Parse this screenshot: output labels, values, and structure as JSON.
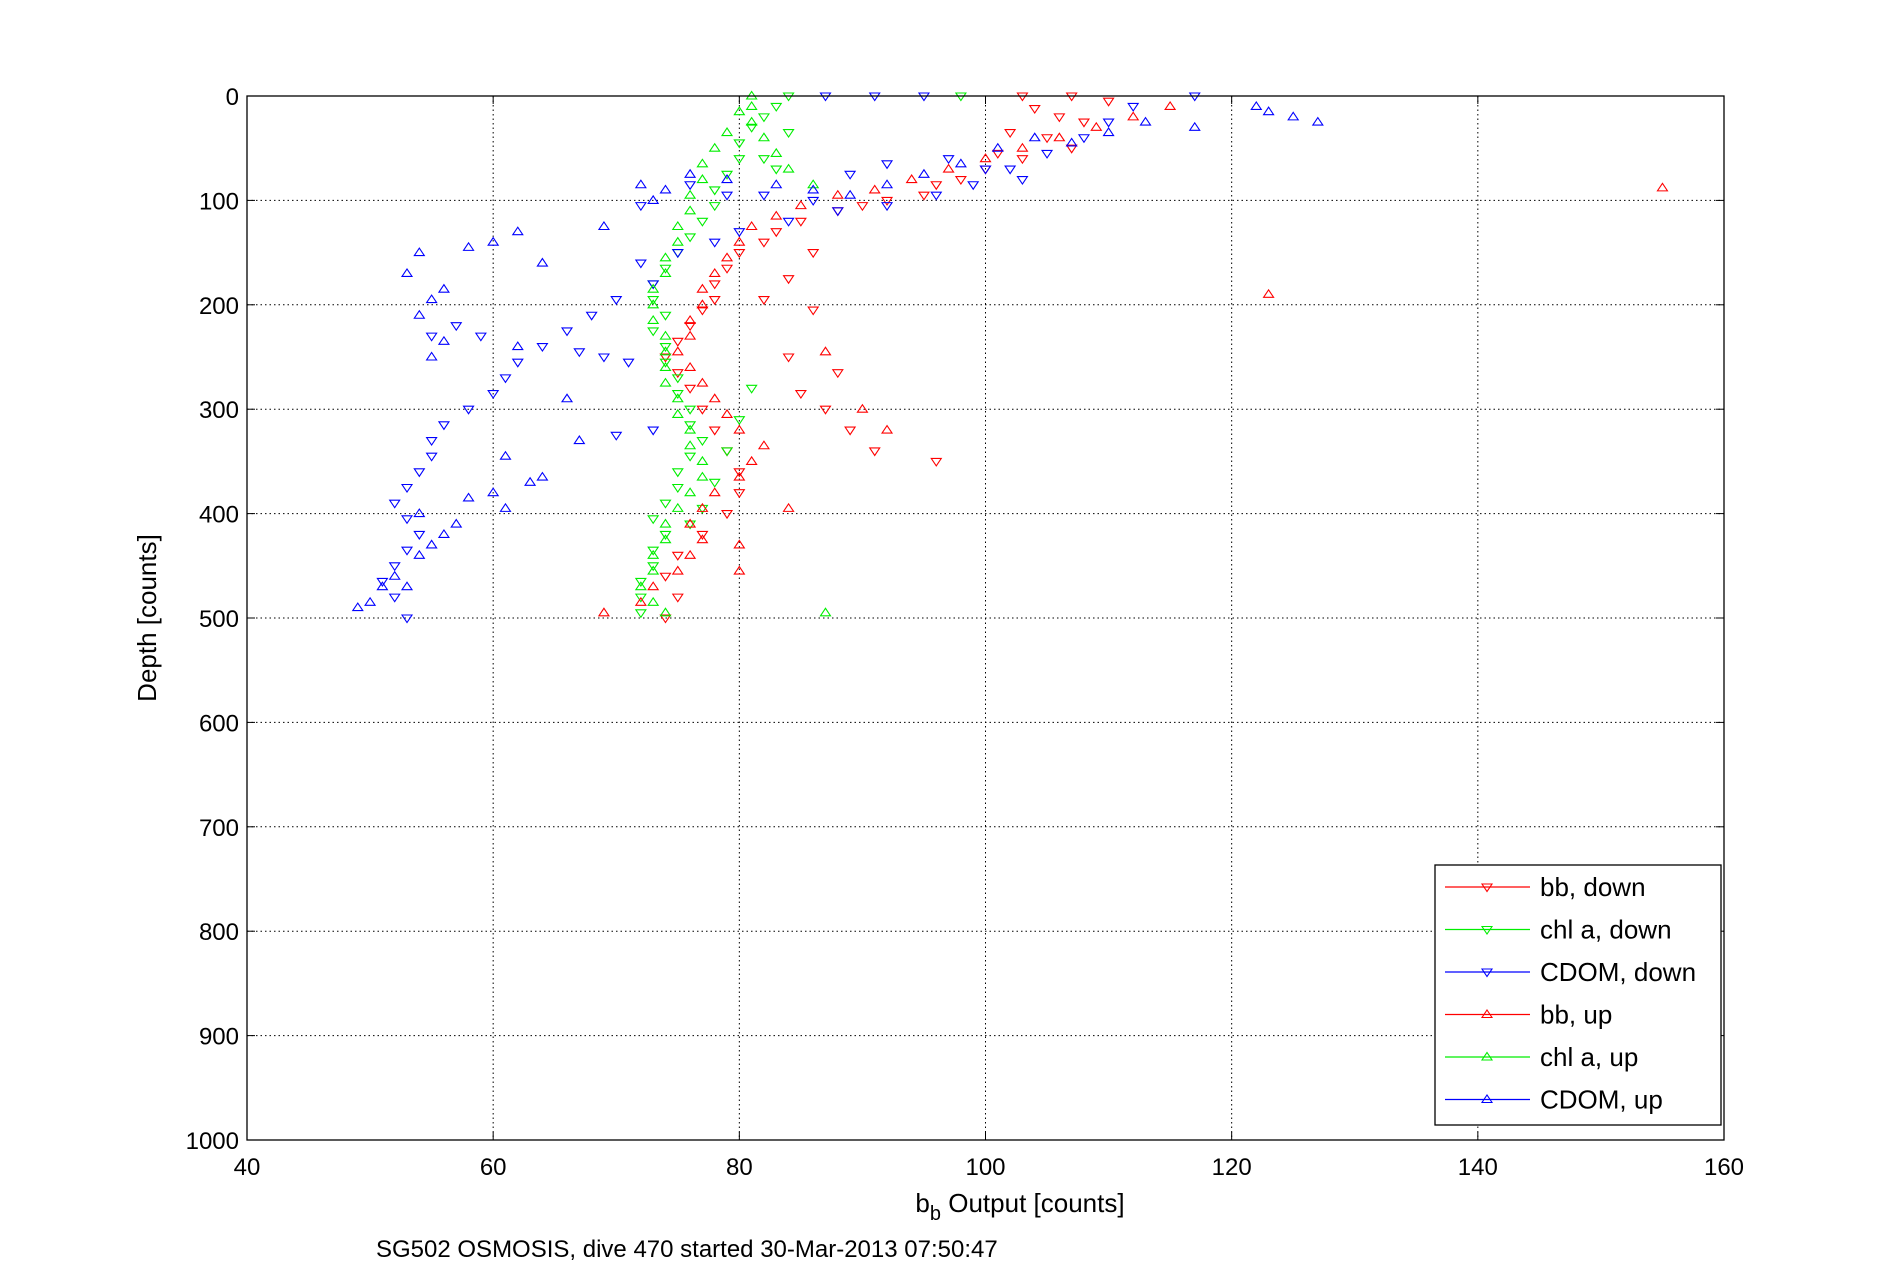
{
  "chart_data": {
    "type": "scatter",
    "xlabel_main": "b",
    "xlabel_sub": "b",
    "xlabel_rest": " Output [counts]",
    "ylabel": "Depth [counts]",
    "caption": "SG502 OSMOSIS, dive 470 started 30-Mar-2013 07:50:47",
    "xlim": [
      40,
      160
    ],
    "ylim": [
      0,
      1000
    ],
    "y_reversed": true,
    "grid": true,
    "xticks": [
      "40",
      "60",
      "80",
      "100",
      "120",
      "140",
      "160"
    ],
    "yticks": [
      "0",
      "100",
      "200",
      "300",
      "400",
      "500",
      "600",
      "700",
      "800",
      "900",
      "1000"
    ],
    "legend_position": "bottom-right",
    "series": [
      {
        "name": "bb, down",
        "color": "#ff0000",
        "marker": "triangle-down",
        "points": [
          [
            103,
            0
          ],
          [
            107,
            0
          ],
          [
            110,
            5
          ],
          [
            104,
            12
          ],
          [
            106,
            20
          ],
          [
            108,
            25
          ],
          [
            102,
            35
          ],
          [
            105,
            40
          ],
          [
            107,
            50
          ],
          [
            101,
            55
          ],
          [
            103,
            60
          ],
          [
            100,
            70
          ],
          [
            98,
            80
          ],
          [
            96,
            85
          ],
          [
            95,
            95
          ],
          [
            92,
            100
          ],
          [
            90,
            105
          ],
          [
            88,
            110
          ],
          [
            85,
            120
          ],
          [
            83,
            130
          ],
          [
            82,
            140
          ],
          [
            80,
            150
          ],
          [
            79,
            165
          ],
          [
            78,
            180
          ],
          [
            78,
            195
          ],
          [
            77,
            205
          ],
          [
            76,
            220
          ],
          [
            75,
            235
          ],
          [
            74,
            250
          ],
          [
            75,
            265
          ],
          [
            76,
            280
          ],
          [
            77,
            300
          ],
          [
            78,
            320
          ],
          [
            79,
            340
          ],
          [
            80,
            360
          ],
          [
            80,
            380
          ],
          [
            79,
            400
          ],
          [
            77,
            420
          ],
          [
            75,
            440
          ],
          [
            74,
            460
          ],
          [
            75,
            480
          ],
          [
            74,
            500
          ],
          [
            84,
            250
          ],
          [
            88,
            265
          ],
          [
            85,
            285
          ],
          [
            87,
            300
          ],
          [
            89,
            320
          ],
          [
            91,
            340
          ],
          [
            96,
            350
          ],
          [
            86,
            205
          ],
          [
            82,
            195
          ],
          [
            84,
            175
          ],
          [
            86,
            150
          ]
        ]
      },
      {
        "name": "chl a, down",
        "color": "#00ee00",
        "marker": "triangle-down",
        "points": [
          [
            98,
            0
          ],
          [
            84,
            0
          ],
          [
            83,
            10
          ],
          [
            82,
            20
          ],
          [
            81,
            30
          ],
          [
            80,
            45
          ],
          [
            80,
            60
          ],
          [
            79,
            75
          ],
          [
            78,
            90
          ],
          [
            78,
            105
          ],
          [
            77,
            120
          ],
          [
            76,
            135
          ],
          [
            75,
            150
          ],
          [
            74,
            165
          ],
          [
            73,
            180
          ],
          [
            73,
            195
          ],
          [
            74,
            210
          ],
          [
            73,
            225
          ],
          [
            74,
            240
          ],
          [
            74,
            255
          ],
          [
            75,
            270
          ],
          [
            75,
            285
          ],
          [
            76,
            300
          ],
          [
            76,
            315
          ],
          [
            77,
            330
          ],
          [
            76,
            345
          ],
          [
            75,
            360
          ],
          [
            75,
            375
          ],
          [
            74,
            390
          ],
          [
            73,
            405
          ],
          [
            74,
            420
          ],
          [
            73,
            435
          ],
          [
            73,
            450
          ],
          [
            72,
            465
          ],
          [
            72,
            480
          ],
          [
            72,
            495
          ],
          [
            76,
            410
          ],
          [
            77,
            395
          ],
          [
            78,
            370
          ],
          [
            79,
            340
          ],
          [
            80,
            310
          ],
          [
            81,
            280
          ],
          [
            82,
            60
          ],
          [
            84,
            35
          ],
          [
            83,
            70
          ]
        ]
      },
      {
        "name": "CDOM, down",
        "color": "#0000ff",
        "marker": "triangle-down",
        "points": [
          [
            117,
            0
          ],
          [
            95,
            0
          ],
          [
            91,
            0
          ],
          [
            87,
            0
          ],
          [
            112,
            10
          ],
          [
            110,
            25
          ],
          [
            108,
            40
          ],
          [
            105,
            55
          ],
          [
            102,
            70
          ],
          [
            99,
            85
          ],
          [
            96,
            95
          ],
          [
            92,
            105
          ],
          [
            88,
            110
          ],
          [
            84,
            120
          ],
          [
            80,
            130
          ],
          [
            78,
            140
          ],
          [
            75,
            150
          ],
          [
            72,
            160
          ],
          [
            73,
            180
          ],
          [
            70,
            195
          ],
          [
            68,
            210
          ],
          [
            66,
            225
          ],
          [
            64,
            240
          ],
          [
            62,
            255
          ],
          [
            61,
            270
          ],
          [
            60,
            285
          ],
          [
            58,
            300
          ],
          [
            56,
            315
          ],
          [
            55,
            330
          ],
          [
            55,
            345
          ],
          [
            54,
            360
          ],
          [
            53,
            375
          ],
          [
            52,
            390
          ],
          [
            53,
            405
          ],
          [
            54,
            420
          ],
          [
            53,
            435
          ],
          [
            52,
            450
          ],
          [
            51,
            465
          ],
          [
            52,
            480
          ],
          [
            53,
            500
          ],
          [
            67,
            245
          ],
          [
            69,
            250
          ],
          [
            71,
            255
          ],
          [
            73,
            320
          ],
          [
            70,
            325
          ],
          [
            72,
            105
          ],
          [
            76,
            85
          ],
          [
            79,
            95
          ],
          [
            82,
            95
          ],
          [
            86,
            100
          ],
          [
            89,
            75
          ],
          [
            92,
            65
          ],
          [
            97,
            60
          ],
          [
            100,
            70
          ],
          [
            103,
            80
          ],
          [
            59,
            230
          ],
          [
            57,
            220
          ],
          [
            55,
            230
          ]
        ]
      },
      {
        "name": "bb, up",
        "color": "#ff0000",
        "marker": "triangle-up",
        "points": [
          [
            115,
            10
          ],
          [
            112,
            20
          ],
          [
            109,
            30
          ],
          [
            106,
            40
          ],
          [
            103,
            50
          ],
          [
            100,
            60
          ],
          [
            97,
            70
          ],
          [
            94,
            80
          ],
          [
            91,
            90
          ],
          [
            88,
            95
          ],
          [
            85,
            105
          ],
          [
            83,
            115
          ],
          [
            81,
            125
          ],
          [
            80,
            140
          ],
          [
            79,
            155
          ],
          [
            78,
            170
          ],
          [
            77,
            185
          ],
          [
            77,
            200
          ],
          [
            76,
            215
          ],
          [
            76,
            230
          ],
          [
            75,
            245
          ],
          [
            76,
            260
          ],
          [
            77,
            275
          ],
          [
            78,
            290
          ],
          [
            79,
            305
          ],
          [
            80,
            320
          ],
          [
            82,
            335
          ],
          [
            81,
            350
          ],
          [
            80,
            365
          ],
          [
            78,
            380
          ],
          [
            77,
            395
          ],
          [
            76,
            410
          ],
          [
            77,
            425
          ],
          [
            76,
            440
          ],
          [
            75,
            455
          ],
          [
            73,
            470
          ],
          [
            72,
            485
          ],
          [
            69,
            495
          ],
          [
            155,
            88
          ],
          [
            123,
            190
          ],
          [
            84,
            395
          ],
          [
            80,
            430
          ],
          [
            80,
            455
          ],
          [
            87,
            245
          ],
          [
            90,
            300
          ],
          [
            92,
            320
          ]
        ]
      },
      {
        "name": "chl a, up",
        "color": "#00ee00",
        "marker": "triangle-up",
        "points": [
          [
            86,
            85
          ],
          [
            84,
            70
          ],
          [
            83,
            55
          ],
          [
            82,
            40
          ],
          [
            81,
            25
          ],
          [
            81,
            10
          ],
          [
            81,
            0
          ],
          [
            80,
            15
          ],
          [
            79,
            35
          ],
          [
            78,
            50
          ],
          [
            77,
            65
          ],
          [
            77,
            80
          ],
          [
            76,
            95
          ],
          [
            76,
            110
          ],
          [
            75,
            125
          ],
          [
            75,
            140
          ],
          [
            74,
            155
          ],
          [
            74,
            170
          ],
          [
            73,
            185
          ],
          [
            73,
            200
          ],
          [
            73,
            215
          ],
          [
            74,
            230
          ],
          [
            74,
            245
          ],
          [
            74,
            260
          ],
          [
            74,
            275
          ],
          [
            75,
            290
          ],
          [
            75,
            305
          ],
          [
            76,
            320
          ],
          [
            76,
            335
          ],
          [
            77,
            350
          ],
          [
            77,
            365
          ],
          [
            76,
            380
          ],
          [
            75,
            395
          ],
          [
            74,
            410
          ],
          [
            74,
            425
          ],
          [
            73,
            440
          ],
          [
            73,
            455
          ],
          [
            72,
            470
          ],
          [
            73,
            485
          ],
          [
            74,
            495
          ],
          [
            87,
            495
          ]
        ]
      },
      {
        "name": "CDOM, up",
        "color": "#0000ff",
        "marker": "triangle-up",
        "points": [
          [
            127,
            25
          ],
          [
            125,
            20
          ],
          [
            123,
            15
          ],
          [
            122,
            10
          ],
          [
            117,
            30
          ],
          [
            113,
            25
          ],
          [
            110,
            35
          ],
          [
            107,
            45
          ],
          [
            104,
            40
          ],
          [
            101,
            50
          ],
          [
            98,
            65
          ],
          [
            95,
            75
          ],
          [
            92,
            85
          ],
          [
            89,
            95
          ],
          [
            86,
            90
          ],
          [
            83,
            85
          ],
          [
            79,
            80
          ],
          [
            76,
            75
          ],
          [
            74,
            90
          ],
          [
            73,
            100
          ],
          [
            72,
            85
          ],
          [
            64,
            160
          ],
          [
            62,
            130
          ],
          [
            60,
            140
          ],
          [
            58,
            145
          ],
          [
            56,
            185
          ],
          [
            55,
            195
          ],
          [
            54,
            150
          ],
          [
            53,
            170
          ],
          [
            54,
            210
          ],
          [
            56,
            235
          ],
          [
            55,
            250
          ],
          [
            62,
            240
          ],
          [
            64,
            365
          ],
          [
            63,
            370
          ],
          [
            61,
            345
          ],
          [
            60,
            380
          ],
          [
            58,
            385
          ],
          [
            57,
            410
          ],
          [
            56,
            420
          ],
          [
            55,
            430
          ],
          [
            54,
            440
          ],
          [
            52,
            460
          ],
          [
            51,
            470
          ],
          [
            50,
            485
          ],
          [
            49,
            490
          ],
          [
            53,
            470
          ],
          [
            54,
            400
          ],
          [
            61,
            395
          ],
          [
            66,
            290
          ],
          [
            67,
            330
          ],
          [
            69,
            125
          ]
        ]
      }
    ]
  }
}
